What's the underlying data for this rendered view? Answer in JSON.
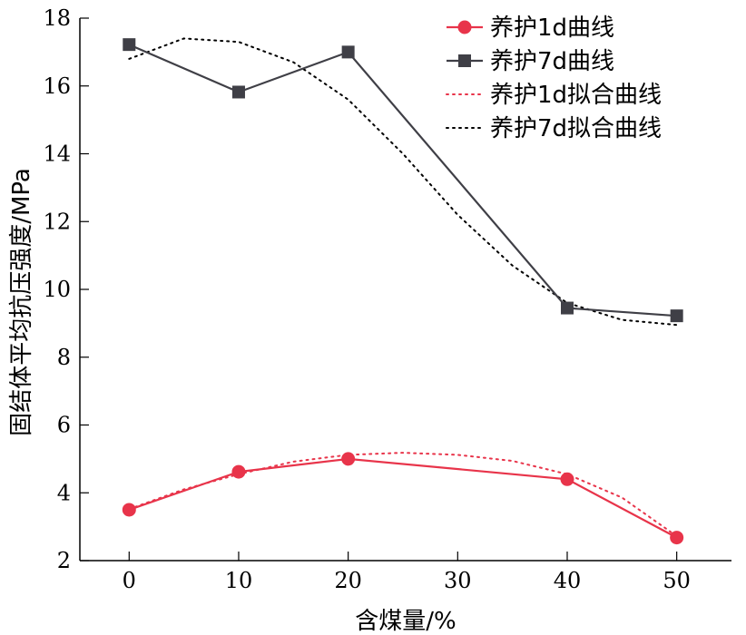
{
  "chart_data": {
    "type": "line",
    "xlabel": "含煤量/%",
    "ylabel": "固结体平均抗压强度/MPa",
    "xlim": [
      -4.5,
      55
    ],
    "ylim": [
      2,
      18
    ],
    "xticks": [
      0,
      10,
      20,
      30,
      40,
      50
    ],
    "yticks": [
      2,
      4,
      6,
      8,
      10,
      12,
      14,
      16,
      18
    ],
    "grid": false,
    "legend_position": "top-right",
    "series": [
      {
        "name": "养护1d曲线",
        "style": "line-circle",
        "color": "#e8344a",
        "x": [
          0,
          10,
          20,
          40,
          50
        ],
        "y": [
          3.5,
          4.62,
          5.0,
          4.4,
          2.68
        ]
      },
      {
        "name": "养护7d曲线",
        "style": "line-square",
        "color": "#3f3f46",
        "x": [
          0,
          10,
          20,
          40,
          50
        ],
        "y": [
          17.22,
          15.82,
          17.0,
          9.45,
          9.22
        ]
      },
      {
        "name": "养护1d拟合曲线",
        "style": "dotted",
        "color": "#e8344a",
        "x": [
          0,
          5,
          10,
          15,
          20,
          25,
          30,
          35,
          40,
          45,
          50
        ],
        "y": [
          3.52,
          4.1,
          4.55,
          4.92,
          5.12,
          5.18,
          5.12,
          4.94,
          4.55,
          3.86,
          2.72
        ]
      },
      {
        "name": "养护7d拟合曲线",
        "style": "dotted",
        "color": "#000000",
        "x": [
          0,
          5,
          10,
          15,
          20,
          25,
          30,
          35,
          40,
          45,
          50
        ],
        "y": [
          16.8,
          17.4,
          17.3,
          16.7,
          15.6,
          14.0,
          12.2,
          10.7,
          9.6,
          9.1,
          8.95
        ]
      }
    ]
  }
}
